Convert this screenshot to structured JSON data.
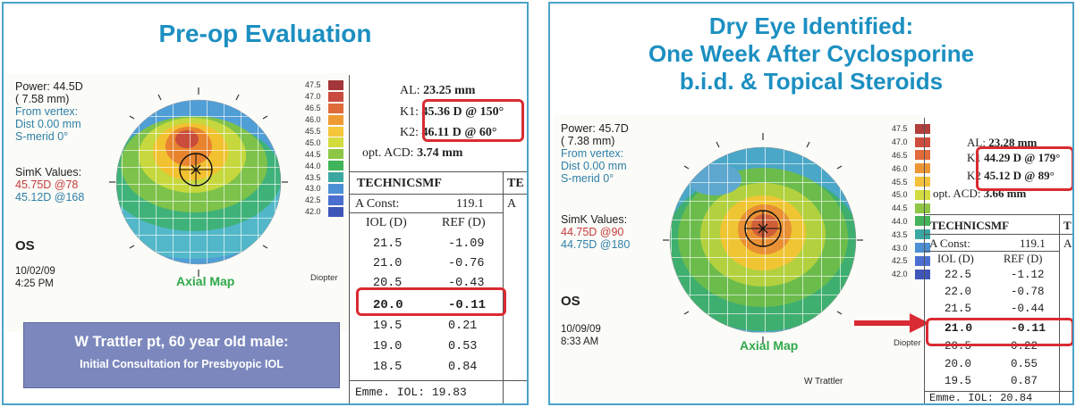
{
  "left": {
    "title": "Pre-op Evaluation",
    "power": "Power:  44.5D",
    "mm": "(  7.58 mm)",
    "vertex": "From vertex:",
    "dist": "Dist  0.00 mm",
    "smerid": "S-merid    0°",
    "simk_title": "SimK Values:",
    "simk1": "45.75D @78",
    "simk2": "45.12D @168",
    "eye": "OS",
    "date": "10/02/09",
    "time": "4:25 PM",
    "axial": "Axial Map",
    "diopter": "Diopter",
    "scale": [
      "47.5",
      "47.0",
      "46.5",
      "46.0",
      "45.5",
      "45.0",
      "44.5",
      "44.0",
      "43.5",
      "43.0",
      "42.5",
      "42.0"
    ],
    "al_label": "AL:",
    "al_value": "23.25 mm",
    "k1_label": "K1:",
    "k1_value": "45.36 D @ 150°",
    "k2_label": "K2:",
    "k2_value": "46.11 D @  60°",
    "acd_label": "opt. ACD:",
    "acd_value": "3.74 mm",
    "lens": "TECHNICSMF",
    "lens_cut": "TE",
    "aconst_label": "A Const:",
    "aconst_value": "119.1",
    "aconst_cut": "A",
    "col_iol": "IOL (D)",
    "col_ref": "REF (D)",
    "rows": [
      {
        "iol": "21.5",
        "ref": "-1.09"
      },
      {
        "iol": "21.0",
        "ref": "-0.76"
      },
      {
        "iol": "20.5",
        "ref": "-0.43"
      },
      {
        "iol": "20.0",
        "ref": "-0.11"
      },
      {
        "iol": "19.5",
        "ref": "0.21"
      },
      {
        "iol": "19.0",
        "ref": "0.53"
      },
      {
        "iol": "18.5",
        "ref": "0.84"
      }
    ],
    "emme": "Emme. IOL: 19.83",
    "note1": "W Trattler pt, 60 year old male:",
    "note2": "Initial Consultation for Presbyopic IOL"
  },
  "right": {
    "title1": "Dry Eye Identified:",
    "title2": "One Week After Cyclosporine",
    "title3": "b.i.d. & Topical Steroids",
    "power": "Power:  45.7D",
    "mm": "(  7.38 mm)",
    "vertex": "From vertex:",
    "dist": "Dist  0.00 mm",
    "smerid": "S-merid    0°",
    "simk_title": "SimK Values:",
    "simk1": "44.75D @90",
    "simk2": "44.75D @180",
    "eye": "OS",
    "date": "10/09/09",
    "time": "8:33 AM",
    "axial": "Axial Map",
    "diopter": "Diopter",
    "scale": [
      "47.5",
      "47.0",
      "46.5",
      "46.0",
      "45.5",
      "45.0",
      "44.5",
      "44.0",
      "43.5",
      "43.0",
      "42.5",
      "42.0"
    ],
    "al_label": "AL:",
    "al_value": "23.28 mm",
    "k1_label": "K1",
    "k1_value": "44.29 D @ 179°",
    "k2_label": "K2",
    "k2_value": "45.12 D @  89°",
    "acd_label": "opt. ACD:",
    "acd_value": "3.66 mm",
    "lens": "TECHNICSMF",
    "lens_cut": "T",
    "aconst_label": "A Const:",
    "aconst_value": "119.1",
    "aconst_cut": "A",
    "col_iol": "IOL (D)",
    "col_ref": "REF (D)",
    "rows": [
      {
        "iol": "22.5",
        "ref": "-1.12"
      },
      {
        "iol": "22.0",
        "ref": "-0.78"
      },
      {
        "iol": "21.5",
        "ref": "-0.44"
      },
      {
        "iol": "21.0",
        "ref": "-0.11"
      },
      {
        "iol": "20.5",
        "ref": "0.22"
      },
      {
        "iol": "20.0",
        "ref": "0.55"
      },
      {
        "iol": "19.5",
        "ref": "0.87"
      }
    ],
    "emme": "Emme. IOL: 20.84",
    "signer": "W Trattler"
  },
  "colors": {
    "accent_blue": "#1c8fc1",
    "highlight_red": "#d92b33",
    "note_bg": "#7c88bd"
  }
}
